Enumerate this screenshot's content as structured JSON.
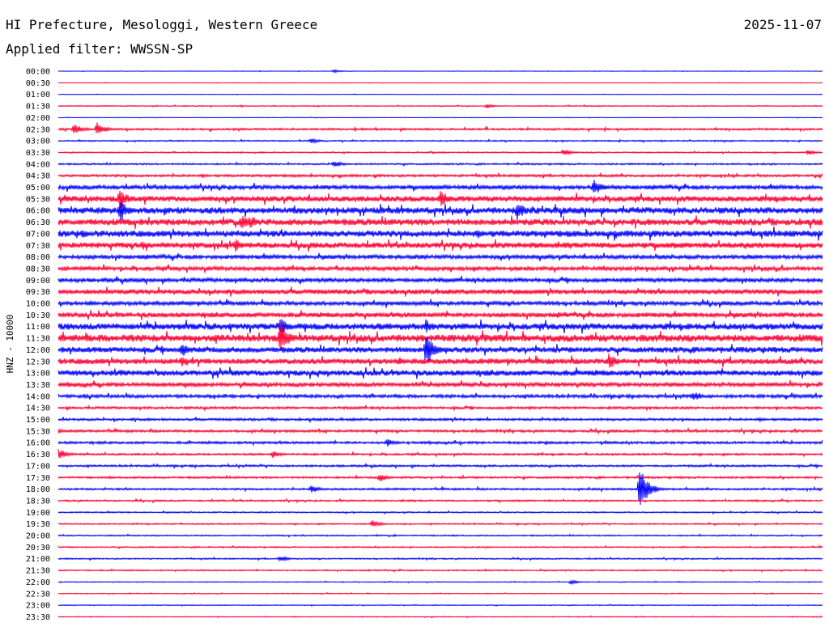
{
  "header": {
    "title": "HI Prefecture, Mesologgi, Western Greece",
    "date": "2025-11-07",
    "filter": "Applied filter: WWSSN-SP"
  },
  "chart_data": {
    "type": "line",
    "ylabel": "HNZ - 10000",
    "colors": [
      "#0000ff",
      "#ff0033"
    ],
    "time_labels": [
      "00:00",
      "00:30",
      "01:00",
      "01:30",
      "02:00",
      "02:30",
      "03:00",
      "03:30",
      "04:00",
      "04:30",
      "05:00",
      "05:30",
      "06:00",
      "06:30",
      "07:00",
      "07:30",
      "08:00",
      "08:30",
      "09:00",
      "09:30",
      "10:00",
      "10:30",
      "11:00",
      "11:30",
      "12:00",
      "12:30",
      "13:00",
      "13:30",
      "14:00",
      "14:30",
      "15:00",
      "15:30",
      "16:00",
      "16:30",
      "17:00",
      "17:30",
      "18:00",
      "18:30",
      "19:00",
      "19:30",
      "20:00",
      "20:30",
      "21:00",
      "21:30",
      "22:00",
      "22:30",
      "23:00",
      "23:30"
    ],
    "noise_level": [
      0.3,
      0.3,
      0.3,
      0.6,
      0.3,
      1.2,
      0.8,
      0.8,
      1,
      1.5,
      2.5,
      3.5,
      4,
      4,
      4,
      3.5,
      2.5,
      2.5,
      2.5,
      3,
      2.5,
      3,
      4,
      4.5,
      3.5,
      3.5,
      3.5,
      2.5,
      2,
      1.5,
      1.5,
      1.5,
      1.5,
      1.2,
      1.2,
      1.2,
      1.2,
      1,
      0.8,
      0.8,
      0.8,
      0.8,
      0.8,
      0.8,
      0.5,
      0.5,
      0.5,
      0.5
    ],
    "events": [
      {
        "row": 0,
        "x": 0.36,
        "amp": 2
      },
      {
        "row": 3,
        "x": 0.56,
        "amp": 3
      },
      {
        "row": 5,
        "x": 0.02,
        "amp": 8
      },
      {
        "row": 5,
        "x": 0.05,
        "amp": 10
      },
      {
        "row": 6,
        "x": 0.33,
        "amp": 4
      },
      {
        "row": 7,
        "x": 0.66,
        "amp": 5
      },
      {
        "row": 7,
        "x": 0.98,
        "amp": 4
      },
      {
        "row": 8,
        "x": 0.36,
        "amp": 5
      },
      {
        "row": 10,
        "x": 0.7,
        "amp": 12
      },
      {
        "row": 11,
        "x": 0.08,
        "amp": 14
      },
      {
        "row": 11,
        "x": 0.5,
        "amp": 12
      },
      {
        "row": 12,
        "x": 0.08,
        "amp": 16
      },
      {
        "row": 12,
        "x": 0.6,
        "amp": 14
      },
      {
        "row": 13,
        "x": 0.24,
        "amp": 10
      },
      {
        "row": 13,
        "x": 0.25,
        "amp": 9
      },
      {
        "row": 14,
        "x": 0.03,
        "amp": 7
      },
      {
        "row": 15,
        "x": 0.23,
        "amp": 10
      },
      {
        "row": 15,
        "x": 0.11,
        "amp": 6
      },
      {
        "row": 22,
        "x": 0.29,
        "amp": 12
      },
      {
        "row": 22,
        "x": 0.48,
        "amp": 10
      },
      {
        "row": 23,
        "x": 0.29,
        "amp": 22
      },
      {
        "row": 24,
        "x": 0.16,
        "amp": 12
      },
      {
        "row": 24,
        "x": 0.48,
        "amp": 25
      },
      {
        "row": 25,
        "x": 0.16,
        "amp": 8
      },
      {
        "row": 25,
        "x": 0.72,
        "amp": 12
      },
      {
        "row": 26,
        "x": 0.08,
        "amp": 6
      },
      {
        "row": 28,
        "x": 0.83,
        "amp": 7
      },
      {
        "row": 31,
        "x": 0.0,
        "amp": 3
      },
      {
        "row": 32,
        "x": 0.43,
        "amp": 6
      },
      {
        "row": 33,
        "x": 0.0,
        "amp": 8
      },
      {
        "row": 33,
        "x": 0.28,
        "amp": 5
      },
      {
        "row": 35,
        "x": 0.42,
        "amp": 6
      },
      {
        "row": 36,
        "x": 0.33,
        "amp": 6
      },
      {
        "row": 36,
        "x": 0.76,
        "amp": 30
      },
      {
        "row": 39,
        "x": 0.41,
        "amp": 5
      },
      {
        "row": 42,
        "x": 0.29,
        "amp": 4
      },
      {
        "row": 44,
        "x": 0.67,
        "amp": 3
      }
    ]
  }
}
